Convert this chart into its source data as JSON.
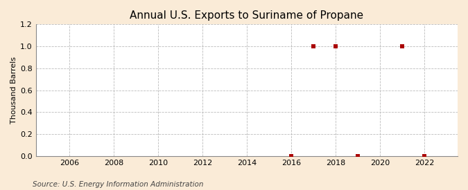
{
  "title": "Annual U.S. Exports to Suriname of Propane",
  "ylabel": "Thousand Barrels",
  "source": "Source: U.S. Energy Information Administration",
  "background_color": "#faebd7",
  "plot_background_color": "#ffffff",
  "xlim": [
    2004.5,
    2023.5
  ],
  "ylim": [
    0.0,
    1.2
  ],
  "yticks": [
    0.0,
    0.2,
    0.4,
    0.6,
    0.8,
    1.0,
    1.2
  ],
  "xticks": [
    2006,
    2008,
    2010,
    2012,
    2014,
    2016,
    2018,
    2020,
    2022
  ],
  "data_x": [
    2016,
    2017,
    2018,
    2019,
    2021,
    2022
  ],
  "data_y": [
    0.0,
    1.0,
    1.0,
    0.0,
    1.0,
    0.0
  ],
  "marker_color": "#aa0000",
  "marker": "s",
  "marker_size": 4,
  "grid_color": "#bbbbbb",
  "grid_style": "--",
  "title_fontsize": 11,
  "label_fontsize": 8,
  "tick_fontsize": 8,
  "source_fontsize": 7.5
}
